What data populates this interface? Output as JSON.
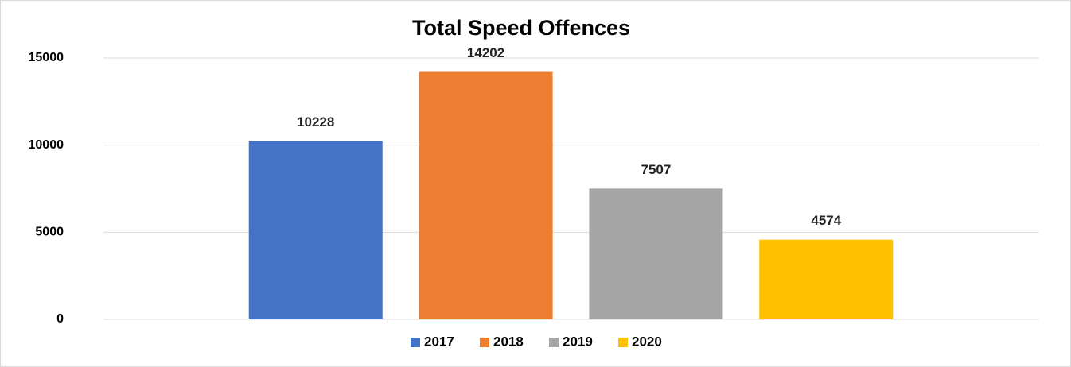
{
  "chart_data": {
    "type": "bar",
    "title": "Total Speed Offences",
    "categories": [
      null
    ],
    "series": [
      {
        "name": "2017",
        "color": "#4472c4",
        "values": [
          10228
        ]
      },
      {
        "name": "2018",
        "color": "#ed7d31",
        "values": [
          14202
        ]
      },
      {
        "name": "2019",
        "color": "#a5a5a5",
        "values": [
          7507
        ]
      },
      {
        "name": "2020",
        "color": "#ffc000",
        "values": [
          4574
        ]
      }
    ],
    "ylim": [
      0,
      15000
    ],
    "yticks": [
      0,
      5000,
      10000,
      15000
    ],
    "grid": true,
    "legend": "bottom"
  }
}
